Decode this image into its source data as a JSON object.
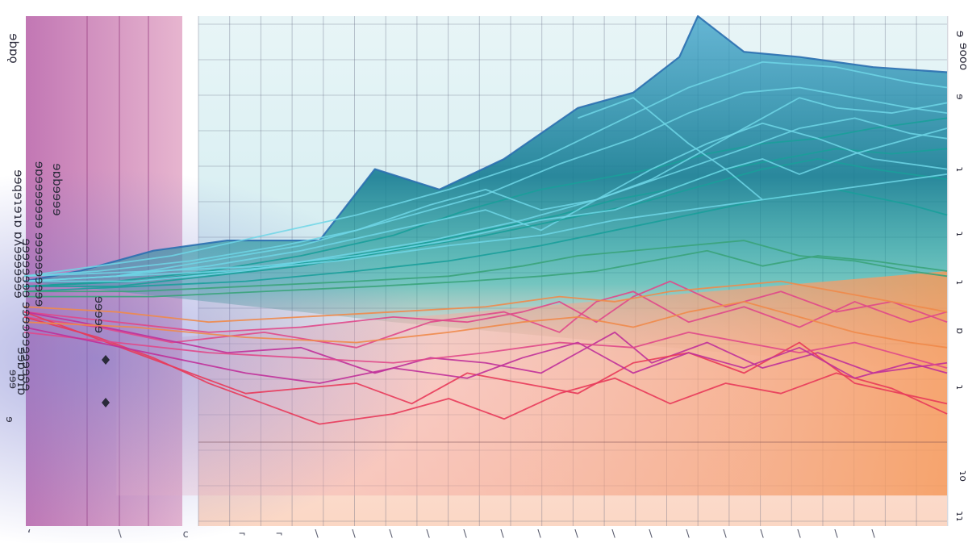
{
  "chart_data": {
    "type": "line",
    "title": "",
    "xlabel": "",
    "ylabel": "",
    "grid": true,
    "xlim": [
      0,
      100
    ],
    "ylim": [
      0,
      100
    ],
    "left_labels": [
      "ɘbɒǫ",
      "ɘɘqɘɿɘɿɒ ɒʎɘɘɘɘɘɘɘ",
      "ɘɒbɘɘɘɘ",
      "ɘɒɘɘɘɘɘɘɘ ɘɘɘɘɘɘɘɘɘɘ",
      "ɘɘɘɘɘɘɘɘ ɘɘɘɘɘɘɘɘɘɘɘɘ",
      "ɘɘɘɘɘ",
      "ɘɘɒ ɒɿɒ",
      "ɘɘɘ",
      "ɘ"
    ],
    "right_labels": [
      "ɘ",
      "ɘooo",
      "ɘ",
      "ɿ",
      "ɿ",
      "ɿ",
      "ɒ",
      "ɿ",
      "ɿo",
      "ɿɿ"
    ],
    "bottom_ticks": [
      "‘",
      "∖",
      "c",
      "¬",
      "¬",
      "∖",
      "∖",
      "∖",
      "∖",
      "∖",
      "∖",
      "∖",
      "∖",
      "∖",
      "∖",
      "∖",
      "∖",
      "∖",
      "∖",
      "∖",
      "∖"
    ],
    "colors": {
      "blue": "#2b6fb0",
      "cyan": "#6fd6e6",
      "teal": "#1a9e9a",
      "green": "#3aa37a",
      "pink": "#e0488a",
      "magenta": "#c0309a",
      "orange": "#f08a4a",
      "red": "#e83a5a"
    },
    "series": [
      {
        "color": "blue",
        "x": [
          0,
          6,
          14,
          22,
          32,
          38,
          45,
          52,
          60,
          66,
          71,
          73,
          78,
          84,
          92,
          100
        ],
        "y": [
          48,
          50,
          54,
          56,
          56,
          70,
          66,
          72,
          82,
          85,
          92,
          100,
          93,
          92,
          90,
          89
        ]
      },
      {
        "color": "cyan",
        "x": [
          0,
          8,
          16,
          26,
          36,
          46,
          56,
          64,
          72,
          80,
          88,
          96,
          100
        ],
        "y": [
          49,
          51,
          53,
          57,
          61,
          66,
          72,
          79,
          86,
          91,
          90,
          87,
          86
        ]
      },
      {
        "color": "cyan",
        "x": [
          0,
          10,
          20,
          30,
          40,
          50,
          58,
          66,
          72,
          78,
          84,
          90,
          96,
          100
        ],
        "y": [
          48,
          49,
          52,
          55,
          60,
          65,
          71,
          76,
          81,
          85,
          86,
          84,
          82,
          81
        ]
      },
      {
        "color": "teal",
        "x": [
          0,
          10,
          20,
          30,
          40,
          48,
          56,
          62,
          68,
          74,
          80,
          86,
          92,
          100
        ],
        "y": [
          47,
          48,
          50,
          53,
          57,
          62,
          66,
          68,
          70,
          73,
          75,
          76,
          78,
          80
        ]
      },
      {
        "color": "cyan",
        "x": [
          0,
          8,
          18,
          28,
          36,
          44,
          50,
          56,
          62,
          68,
          72,
          76,
          80,
          84,
          88,
          94,
          100
        ],
        "y": [
          49,
          50,
          52,
          55,
          58,
          63,
          66,
          62,
          64,
          68,
          72,
          76,
          80,
          84,
          82,
          81,
          83
        ]
      },
      {
        "color": "teal",
        "x": [
          0,
          12,
          22,
          32,
          42,
          50,
          58,
          64,
          70,
          76,
          82,
          88,
          94,
          100
        ],
        "y": [
          47,
          48,
          50,
          52,
          55,
          58,
          61,
          64,
          66,
          70,
          72,
          74,
          73,
          74
        ]
      },
      {
        "color": "cyan",
        "x": [
          0,
          10,
          20,
          30,
          40,
          50,
          56,
          62,
          68,
          74,
          80,
          86,
          92,
          100
        ],
        "y": [
          48,
          49,
          51,
          54,
          58,
          62,
          58,
          64,
          70,
          75,
          79,
          76,
          72,
          70
        ]
      },
      {
        "color": "cyan",
        "x": [
          0,
          12,
          24,
          34,
          44,
          54,
          62,
          70,
          78,
          84,
          90,
          96,
          100
        ],
        "y": [
          48,
          48,
          50,
          53,
          56,
          60,
          64,
          69,
          74,
          78,
          80,
          77,
          76
        ]
      },
      {
        "color": "teal",
        "x": [
          0,
          10,
          20,
          30,
          40,
          50,
          58,
          66,
          74,
          80,
          86,
          92,
          100
        ],
        "y": [
          47,
          47,
          49,
          51,
          54,
          57,
          60,
          63,
          67,
          70,
          72,
          70,
          68
        ]
      },
      {
        "color": "cyan",
        "x": [
          0,
          14,
          26,
          36,
          46,
          56,
          64,
          70,
          76,
          80,
          84,
          90,
          96,
          100
        ],
        "y": [
          49,
          50,
          51,
          53,
          56,
          60,
          62,
          66,
          70,
          72,
          69,
          73,
          76,
          78
        ]
      },
      {
        "color": "teal",
        "x": [
          0,
          12,
          24,
          36,
          46,
          56,
          64,
          72,
          80,
          88,
          96,
          100
        ],
        "y": [
          46,
          47,
          48,
          50,
          52,
          55,
          58,
          61,
          64,
          66,
          63,
          61
        ]
      },
      {
        "color": "cyan",
        "x": [
          0,
          10,
          22,
          34,
          46,
          56,
          64,
          72,
          80,
          88,
          96,
          100
        ],
        "y": [
          48,
          49,
          50,
          52,
          55,
          57,
          60,
          62,
          64,
          66,
          68,
          69
        ]
      },
      {
        "color": "green",
        "x": [
          0,
          12,
          24,
          36,
          46,
          54,
          60,
          66,
          72,
          78,
          84,
          90,
          96,
          100
        ],
        "y": [
          46,
          46,
          47,
          48,
          49,
          51,
          53,
          54,
          55,
          56,
          53,
          52,
          50,
          49
        ]
      },
      {
        "color": "green",
        "x": [
          0,
          14,
          26,
          38,
          48,
          56,
          62,
          68,
          74,
          80,
          86,
          92,
          100
        ],
        "y": [
          45,
          45,
          46,
          47,
          48,
          49,
          50,
          52,
          54,
          51,
          53,
          52,
          50
        ]
      },
      {
        "color": "pink",
        "x": [
          0,
          10,
          20,
          30,
          40,
          48,
          54,
          58,
          62,
          66,
          70,
          76,
          82,
          88,
          94,
          100
        ],
        "y": [
          42,
          40,
          38,
          39,
          41,
          40,
          42,
          44,
          40,
          45,
          48,
          43,
          46,
          42,
          44,
          40
        ]
      },
      {
        "color": "pink",
        "x": [
          0,
          8,
          16,
          26,
          36,
          44,
          52,
          58,
          62,
          66,
          72,
          78,
          84,
          90,
          96,
          100
        ],
        "y": [
          41,
          39,
          36,
          38,
          35,
          40,
          42,
          38,
          44,
          46,
          40,
          43,
          39,
          44,
          40,
          42
        ]
      },
      {
        "color": "magenta",
        "x": [
          0,
          6,
          14,
          22,
          30,
          38,
          44,
          50,
          56,
          60,
          64,
          68,
          74,
          80,
          86,
          92,
          100
        ],
        "y": [
          42,
          40,
          37,
          34,
          35,
          30,
          33,
          32,
          30,
          34,
          38,
          32,
          36,
          31,
          34,
          30,
          32
        ]
      },
      {
        "color": "red",
        "x": [
          0,
          6,
          12,
          18,
          24,
          30,
          36,
          42,
          48,
          54,
          60,
          66,
          72,
          78,
          84,
          90,
          100
        ],
        "y": [
          42,
          38,
          34,
          30,
          26,
          27,
          28,
          24,
          30,
          28,
          26,
          32,
          34,
          30,
          36,
          28,
          24
        ]
      },
      {
        "color": "red",
        "x": [
          0,
          8,
          14,
          20,
          26,
          32,
          40,
          46,
          52,
          58,
          64,
          70,
          76,
          82,
          88,
          94,
          100
        ],
        "y": [
          41,
          37,
          33,
          28,
          24,
          20,
          22,
          25,
          21,
          26,
          29,
          24,
          28,
          26,
          30,
          27,
          22
        ]
      },
      {
        "color": "orange",
        "x": [
          0,
          10,
          20,
          30,
          40,
          50,
          58,
          64,
          70,
          76,
          82,
          88,
          94,
          100
        ],
        "y": [
          43,
          42,
          40,
          41,
          42,
          43,
          45,
          44,
          46,
          47,
          48,
          46,
          44,
          42
        ]
      },
      {
        "color": "orange",
        "x": [
          0,
          12,
          24,
          36,
          46,
          54,
          60,
          66,
          72,
          78,
          84,
          90,
          96,
          100
        ],
        "y": [
          40,
          39,
          37,
          36,
          38,
          40,
          41,
          39,
          42,
          44,
          41,
          38,
          36,
          35
        ]
      },
      {
        "color": "pink",
        "x": [
          0,
          10,
          20,
          30,
          40,
          50,
          58,
          66,
          72,
          78,
          84,
          90,
          96,
          100
        ],
        "y": [
          38,
          36,
          34,
          33,
          32,
          34,
          36,
          35,
          38,
          36,
          34,
          36,
          33,
          31
        ]
      },
      {
        "color": "magenta",
        "x": [
          0,
          8,
          16,
          24,
          32,
          40,
          48,
          54,
          60,
          66,
          72,
          78,
          84,
          90,
          96,
          100
        ],
        "y": [
          39,
          36,
          33,
          30,
          28,
          31,
          29,
          33,
          36,
          30,
          34,
          31,
          35,
          29,
          32,
          30
        ]
      },
      {
        "color": "cyan",
        "x": [
          60,
          66,
          72,
          76,
          80
        ],
        "y": [
          80,
          84,
          75,
          70,
          64
        ]
      }
    ]
  }
}
